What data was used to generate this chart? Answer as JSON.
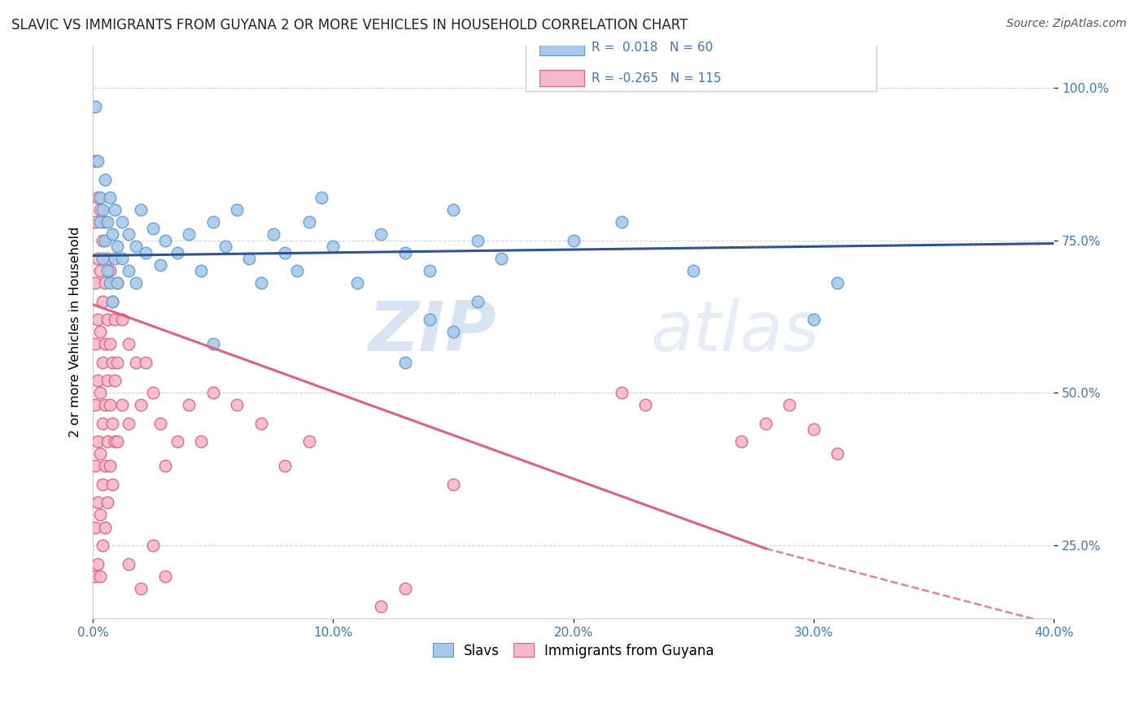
{
  "title": "SLAVIC VS IMMIGRANTS FROM GUYANA 2 OR MORE VEHICLES IN HOUSEHOLD CORRELATION CHART",
  "source": "Source: ZipAtlas.com",
  "xlabel_slavs": "Slavs",
  "xlabel_guyana": "Immigrants from Guyana",
  "ylabel": "2 or more Vehicles in Household",
  "xlim": [
    0.0,
    0.4
  ],
  "ylim": [
    0.13,
    1.07
  ],
  "xticks": [
    0.0,
    0.1,
    0.2,
    0.3,
    0.4
  ],
  "xtick_labels": [
    "0.0%",
    "10.0%",
    "20.0%",
    "30.0%",
    "40.0%"
  ],
  "yticks": [
    0.25,
    0.5,
    0.75,
    1.0
  ],
  "ytick_labels": [
    "25.0%",
    "50.0%",
    "75.0%",
    "100.0%"
  ],
  "slavs_color": "#aac9e8",
  "slavs_edge_color": "#5b9bd5",
  "guyana_color": "#f4b8c8",
  "guyana_edge_color": "#e06080",
  "slavs_line_color": "#2f5496",
  "guyana_line_color": "#e06080",
  "watermark_zip": "ZIP",
  "watermark_atlas": "atlas",
  "background_color": "#ffffff",
  "grid_color": "#d0d0d0",
  "slavs_trend": [
    0.0,
    0.4,
    0.725,
    0.745
  ],
  "guyana_trend_solid": [
    0.0,
    0.28,
    0.645,
    0.245
  ],
  "guyana_trend_dash": [
    0.28,
    0.42,
    0.245,
    0.1
  ],
  "slavs_scatter": [
    [
      0.001,
      0.97
    ],
    [
      0.002,
      0.88
    ],
    [
      0.003,
      0.82
    ],
    [
      0.003,
      0.78
    ],
    [
      0.004,
      0.8
    ],
    [
      0.004,
      0.72
    ],
    [
      0.005,
      0.85
    ],
    [
      0.005,
      0.75
    ],
    [
      0.006,
      0.78
    ],
    [
      0.006,
      0.7
    ],
    [
      0.007,
      0.82
    ],
    [
      0.007,
      0.68
    ],
    [
      0.008,
      0.76
    ],
    [
      0.008,
      0.65
    ],
    [
      0.009,
      0.8
    ],
    [
      0.009,
      0.72
    ],
    [
      0.01,
      0.74
    ],
    [
      0.01,
      0.68
    ],
    [
      0.012,
      0.78
    ],
    [
      0.012,
      0.72
    ],
    [
      0.015,
      0.76
    ],
    [
      0.015,
      0.7
    ],
    [
      0.018,
      0.74
    ],
    [
      0.018,
      0.68
    ],
    [
      0.02,
      0.8
    ],
    [
      0.022,
      0.73
    ],
    [
      0.025,
      0.77
    ],
    [
      0.028,
      0.71
    ],
    [
      0.03,
      0.75
    ],
    [
      0.035,
      0.73
    ],
    [
      0.04,
      0.76
    ],
    [
      0.045,
      0.7
    ],
    [
      0.05,
      0.78
    ],
    [
      0.055,
      0.74
    ],
    [
      0.06,
      0.8
    ],
    [
      0.065,
      0.72
    ],
    [
      0.07,
      0.68
    ],
    [
      0.075,
      0.76
    ],
    [
      0.08,
      0.73
    ],
    [
      0.085,
      0.7
    ],
    [
      0.09,
      0.78
    ],
    [
      0.095,
      0.82
    ],
    [
      0.1,
      0.74
    ],
    [
      0.11,
      0.68
    ],
    [
      0.12,
      0.76
    ],
    [
      0.13,
      0.73
    ],
    [
      0.14,
      0.7
    ],
    [
      0.15,
      0.8
    ],
    [
      0.14,
      0.62
    ],
    [
      0.15,
      0.6
    ],
    [
      0.16,
      0.65
    ],
    [
      0.16,
      0.75
    ],
    [
      0.17,
      0.72
    ],
    [
      0.2,
      0.75
    ],
    [
      0.22,
      0.78
    ],
    [
      0.25,
      0.7
    ],
    [
      0.3,
      0.62
    ],
    [
      0.31,
      0.68
    ],
    [
      0.05,
      0.58
    ],
    [
      0.13,
      0.55
    ]
  ],
  "guyana_scatter": [
    [
      0.001,
      0.88
    ],
    [
      0.001,
      0.78
    ],
    [
      0.001,
      0.68
    ],
    [
      0.001,
      0.58
    ],
    [
      0.001,
      0.48
    ],
    [
      0.001,
      0.38
    ],
    [
      0.001,
      0.28
    ],
    [
      0.001,
      0.2
    ],
    [
      0.002,
      0.82
    ],
    [
      0.002,
      0.72
    ],
    [
      0.002,
      0.62
    ],
    [
      0.002,
      0.52
    ],
    [
      0.002,
      0.42
    ],
    [
      0.002,
      0.32
    ],
    [
      0.002,
      0.22
    ],
    [
      0.003,
      0.8
    ],
    [
      0.003,
      0.7
    ],
    [
      0.003,
      0.6
    ],
    [
      0.003,
      0.5
    ],
    [
      0.003,
      0.4
    ],
    [
      0.003,
      0.3
    ],
    [
      0.003,
      0.2
    ],
    [
      0.004,
      0.75
    ],
    [
      0.004,
      0.65
    ],
    [
      0.004,
      0.55
    ],
    [
      0.004,
      0.45
    ],
    [
      0.004,
      0.35
    ],
    [
      0.004,
      0.25
    ],
    [
      0.005,
      0.78
    ],
    [
      0.005,
      0.68
    ],
    [
      0.005,
      0.58
    ],
    [
      0.005,
      0.48
    ],
    [
      0.005,
      0.38
    ],
    [
      0.005,
      0.28
    ],
    [
      0.006,
      0.72
    ],
    [
      0.006,
      0.62
    ],
    [
      0.006,
      0.52
    ],
    [
      0.006,
      0.42
    ],
    [
      0.006,
      0.32
    ],
    [
      0.007,
      0.7
    ],
    [
      0.007,
      0.58
    ],
    [
      0.007,
      0.48
    ],
    [
      0.007,
      0.38
    ],
    [
      0.008,
      0.65
    ],
    [
      0.008,
      0.55
    ],
    [
      0.008,
      0.45
    ],
    [
      0.008,
      0.35
    ],
    [
      0.009,
      0.62
    ],
    [
      0.009,
      0.52
    ],
    [
      0.009,
      0.42
    ],
    [
      0.01,
      0.68
    ],
    [
      0.01,
      0.55
    ],
    [
      0.01,
      0.42
    ],
    [
      0.012,
      0.62
    ],
    [
      0.012,
      0.48
    ],
    [
      0.015,
      0.58
    ],
    [
      0.015,
      0.45
    ],
    [
      0.018,
      0.55
    ],
    [
      0.02,
      0.48
    ],
    [
      0.022,
      0.55
    ],
    [
      0.025,
      0.5
    ],
    [
      0.028,
      0.45
    ],
    [
      0.03,
      0.38
    ],
    [
      0.035,
      0.42
    ],
    [
      0.04,
      0.48
    ],
    [
      0.045,
      0.42
    ],
    [
      0.05,
      0.5
    ],
    [
      0.06,
      0.48
    ],
    [
      0.07,
      0.45
    ],
    [
      0.08,
      0.38
    ],
    [
      0.09,
      0.42
    ],
    [
      0.13,
      0.18
    ],
    [
      0.15,
      0.35
    ],
    [
      0.22,
      0.5
    ],
    [
      0.23,
      0.48
    ],
    [
      0.27,
      0.42
    ],
    [
      0.28,
      0.45
    ],
    [
      0.29,
      0.48
    ],
    [
      0.3,
      0.44
    ],
    [
      0.31,
      0.4
    ],
    [
      0.12,
      0.15
    ],
    [
      0.015,
      0.22
    ],
    [
      0.02,
      0.18
    ],
    [
      0.025,
      0.25
    ],
    [
      0.03,
      0.2
    ]
  ]
}
